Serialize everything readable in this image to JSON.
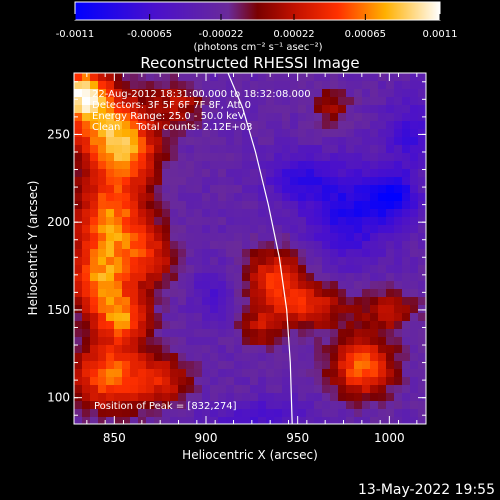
{
  "chart_data": {
    "type": "heatmap",
    "title": "Reconstructed RHESSI Image",
    "xlabel": "Heliocentric X (arcsec)",
    "ylabel": "Heliocentric Y (arcsec)",
    "xlim": [
      828,
      1020
    ],
    "ylim": [
      85,
      285
    ],
    "xticks": [
      850,
      900,
      950,
      1000
    ],
    "yticks": [
      100,
      150,
      200,
      250
    ],
    "info_lines": [
      "22-Aug-2012 18:31:00.000 to 18:32:08.000",
      "Detectors: 3F 5F 6F 7F 8F, Att 0",
      "Energy Range: 25.0 - 50.0 keV",
      "Clean     Total counts: 2.12E+03"
    ],
    "peak_label": "Position of Peak = [832,274]",
    "peak": [
      832,
      274
    ],
    "colorbar": {
      "vmin": -0.0011,
      "vmax": 0.0011,
      "tick_values": [
        -0.0011,
        -0.00065,
        -0.00022,
        0.00022,
        0.00065,
        0.0011
      ],
      "tick_labels": [
        "-0.0011",
        "-0.00065",
        "-0.00022",
        "0.00022",
        "0.00065",
        "0.0011"
      ],
      "units_label": "(photons cm⁻² s⁻¹ asec⁻²)"
    },
    "limb_curve": [
      [
        912,
        285
      ],
      [
        920,
        265
      ],
      [
        927,
        240
      ],
      [
        934,
        210
      ],
      [
        940,
        180
      ],
      [
        944,
        150
      ],
      [
        946,
        120
      ],
      [
        947,
        85
      ]
    ],
    "grid": false,
    "sources": [
      {
        "x": 832,
        "y": 274,
        "sx": 10,
        "sy": 10,
        "amp": 0.0011
      },
      {
        "x": 845,
        "y": 255,
        "sx": 16,
        "sy": 16,
        "amp": 0.0008
      },
      {
        "x": 858,
        "y": 240,
        "sx": 12,
        "sy": 14,
        "amp": 0.0006
      },
      {
        "x": 848,
        "y": 200,
        "sx": 14,
        "sy": 20,
        "amp": 0.00095
      },
      {
        "x": 842,
        "y": 165,
        "sx": 12,
        "sy": 14,
        "amp": 0.00075
      },
      {
        "x": 855,
        "y": 145,
        "sx": 10,
        "sy": 10,
        "amp": 0.0008
      },
      {
        "x": 848,
        "y": 112,
        "sx": 15,
        "sy": 14,
        "amp": 0.0009
      },
      {
        "x": 885,
        "y": 268,
        "sx": 9,
        "sy": 9,
        "amp": 0.00045
      },
      {
        "x": 870,
        "y": 180,
        "sx": 10,
        "sy": 12,
        "amp": 0.0005
      },
      {
        "x": 878,
        "y": 110,
        "sx": 10,
        "sy": 10,
        "amp": 0.0005
      },
      {
        "x": 938,
        "y": 168,
        "sx": 12,
        "sy": 12,
        "amp": 0.0007
      },
      {
        "x": 958,
        "y": 152,
        "sx": 14,
        "sy": 9,
        "amp": 0.0006
      },
      {
        "x": 930,
        "y": 140,
        "sx": 8,
        "sy": 8,
        "amp": 0.00045
      },
      {
        "x": 985,
        "y": 118,
        "sx": 12,
        "sy": 12,
        "amp": 0.0009
      },
      {
        "x": 1000,
        "y": 150,
        "sx": 10,
        "sy": 8,
        "amp": 0.0005
      },
      {
        "x": 968,
        "y": 265,
        "sx": 7,
        "sy": 8,
        "amp": 0.0004
      },
      {
        "x": 930,
        "y": 90,
        "sx": 20,
        "sy": 6,
        "amp": -0.00035
      },
      {
        "x": 978,
        "y": 205,
        "sx": 16,
        "sy": 18,
        "amp": -0.0006
      },
      {
        "x": 1002,
        "y": 215,
        "sx": 9,
        "sy": 9,
        "amp": -0.0007
      },
      {
        "x": 950,
        "y": 225,
        "sx": 12,
        "sy": 10,
        "amp": -0.00045
      },
      {
        "x": 1012,
        "y": 250,
        "sx": 10,
        "sy": 14,
        "amp": -0.0004
      },
      {
        "x": 905,
        "y": 160,
        "sx": 8,
        "sy": 10,
        "amp": -0.0003
      }
    ],
    "background": -0.00028
  },
  "timestamp": "13-May-2022 19:55"
}
